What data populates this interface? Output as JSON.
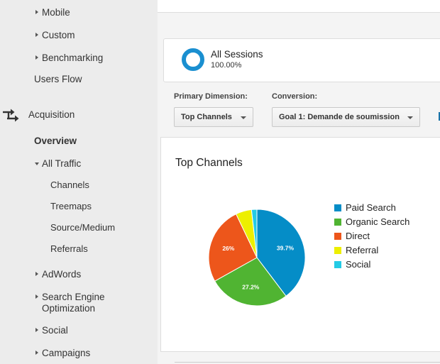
{
  "sidebar": {
    "items": [
      {
        "label": "Mobile"
      },
      {
        "label": "Custom"
      },
      {
        "label": "Benchmarking"
      },
      {
        "label": "Users Flow"
      },
      {
        "label": "Acquisition"
      },
      {
        "label": "Overview"
      },
      {
        "label": "All Traffic"
      },
      {
        "label": "Channels"
      },
      {
        "label": "Treemaps"
      },
      {
        "label": "Source/Medium"
      },
      {
        "label": "Referrals"
      },
      {
        "label": "AdWords"
      },
      {
        "label": "Search Engine"
      },
      {
        "label": "Optimization"
      },
      {
        "label": "Social"
      },
      {
        "label": "Campaigns"
      }
    ]
  },
  "segment": {
    "name": "All Sessions",
    "percent": "100.00%",
    "ring_color": "#1a8fd0"
  },
  "dimensions": {
    "primary_label": "Primary Dimension:",
    "primary_value": "Top Channels",
    "conversion_label": "Conversion:",
    "conversion_value": "Goal 1: Demande de soumission"
  },
  "chart_data": {
    "type": "pie",
    "title": "Top Channels",
    "categories": [
      "Paid Search",
      "Organic Search",
      "Direct",
      "Referral",
      "Social"
    ],
    "values": [
      39.7,
      27.2,
      26,
      5.3,
      1.8
    ],
    "labels": [
      "39.7%",
      "27.2%",
      "26%",
      "",
      ""
    ],
    "colors": [
      "#058dc7",
      "#50b432",
      "#ed561b",
      "#edef00",
      "#24cbe5"
    ],
    "legend": "right"
  }
}
